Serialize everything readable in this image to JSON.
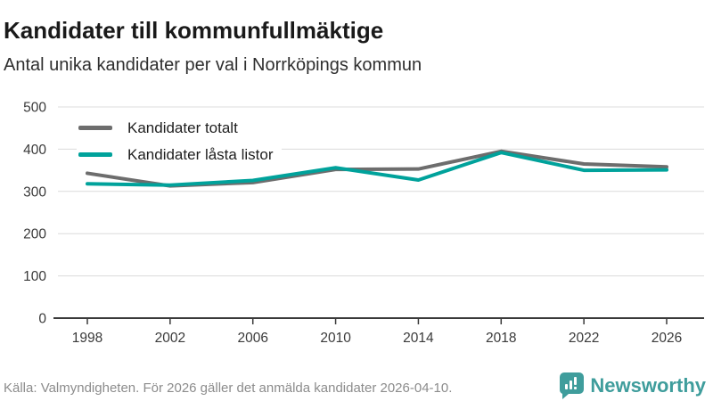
{
  "header": {
    "title": "Kandidater till kommunfullmäktige",
    "subtitle": "Antal unika kandidater per val i Norrköpings kommun"
  },
  "chart_data": {
    "type": "line",
    "x": [
      1998,
      2002,
      2006,
      2010,
      2014,
      2018,
      2022,
      2026
    ],
    "series": [
      {
        "name": "Kandidater totalt",
        "color": "#6d6d6d",
        "values": [
          343,
          313,
          321,
          352,
          353,
          395,
          365,
          358
        ]
      },
      {
        "name": "Kandidater låsta listor",
        "color": "#00a29b",
        "values": [
          318,
          315,
          326,
          356,
          327,
          392,
          350,
          351
        ]
      }
    ],
    "ylim": [
      0,
      500
    ],
    "yticks": [
      0,
      100,
      200,
      300,
      400,
      500
    ],
    "grid": true,
    "legend_position": "top-left",
    "grid_color": "#dcdcdc",
    "axis_color": "#3a3a3a"
  },
  "footer": {
    "source": "Källa: Valmyndigheten. För 2026 gäller det anmälda kandidater 2026-04-10.",
    "brand": "Newsworthy",
    "brand_color": "#3f9d9c"
  }
}
